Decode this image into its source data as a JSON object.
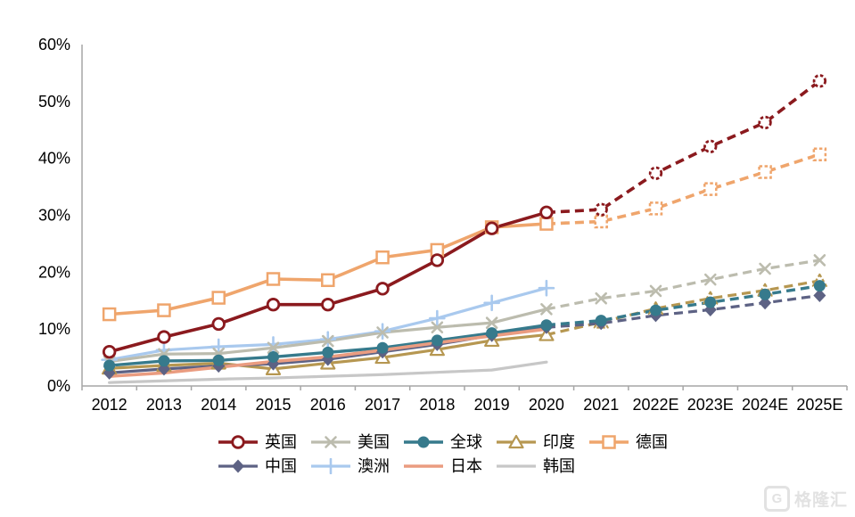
{
  "chart_data": {
    "type": "line",
    "title": "",
    "xlabel": "",
    "ylabel": "",
    "unit": "%",
    "ylim": [
      0,
      60
    ],
    "ytick_step": 10,
    "ytick_labels": [
      "0%",
      "10%",
      "20%",
      "30%",
      "40%",
      "50%",
      "60%"
    ],
    "grid": false,
    "legend_position": "bottom",
    "forecast_dashed_from_index": 8,
    "categories": [
      "2012",
      "2013",
      "2014",
      "2015",
      "2016",
      "2017",
      "2018",
      "2019",
      "2020",
      "2021",
      "2022E",
      "2023E",
      "2024E",
      "2025E"
    ],
    "series": [
      {
        "name": "韩国",
        "color": "#c7c7c7",
        "marker": "none",
        "width": 3.2,
        "values": [
          0.6,
          0.9,
          1.2,
          1.4,
          1.7,
          2.0,
          2.4,
          2.8,
          4.2,
          null,
          null,
          null,
          null,
          null
        ]
      },
      {
        "name": "澳洲",
        "color": "#a9c9ee",
        "marker": "plus",
        "width": 3.2,
        "values": [
          4.6,
          6.3,
          6.9,
          7.3,
          8.2,
          9.6,
          11.9,
          14.6,
          17.2,
          null,
          null,
          null,
          null,
          null
        ]
      },
      {
        "name": "美国",
        "color": "#bcbcae",
        "marker": "x",
        "width": 3.2,
        "values": [
          4.3,
          5.6,
          5.7,
          6.7,
          7.9,
          9.4,
          10.3,
          11.1,
          13.5,
          15.4,
          16.7,
          18.7,
          20.6,
          22.1
        ]
      },
      {
        "name": "印度",
        "color": "#b69751",
        "marker": "triangle-open",
        "width": 3.2,
        "values": [
          3.1,
          3.6,
          4.0,
          3.0,
          4.0,
          5.0,
          6.4,
          8.0,
          9.0,
          11.2,
          13.6,
          15.4,
          16.8,
          18.5
        ]
      },
      {
        "name": "中国",
        "color": "#5d6284",
        "marker": "diamond-filled",
        "width": 3.2,
        "values": [
          2.3,
          3.0,
          3.5,
          3.9,
          4.7,
          6.0,
          7.3,
          8.9,
          10.3,
          11.0,
          12.4,
          13.4,
          14.6,
          15.9
        ]
      },
      {
        "name": "全球",
        "color": "#367a8c",
        "marker": "circle-filled",
        "width": 3.4,
        "values": [
          3.6,
          4.4,
          4.5,
          5.1,
          5.9,
          6.7,
          8.0,
          9.3,
          10.7,
          11.5,
          13.3,
          14.7,
          16.1,
          17.6
        ]
      },
      {
        "name": "日本",
        "color": "#ea9c80",
        "marker": "none",
        "width": 3.6,
        "values": [
          1.7,
          2.3,
          3.3,
          4.3,
          5.1,
          6.3,
          7.6,
          8.8,
          10.0,
          null,
          null,
          null,
          null,
          null
        ]
      },
      {
        "name": "德国",
        "color": "#efa56c",
        "marker": "square-open",
        "width": 3.6,
        "values": [
          12.6,
          13.3,
          15.5,
          18.8,
          18.6,
          22.6,
          23.9,
          27.9,
          28.5,
          28.9,
          31.2,
          34.6,
          37.6,
          40.7
        ]
      },
      {
        "name": "英国",
        "color": "#8b1a1e",
        "marker": "circle-open",
        "width": 3.6,
        "values": [
          6.0,
          8.6,
          10.9,
          14.3,
          14.3,
          17.1,
          22.1,
          27.7,
          30.5,
          31.0,
          37.4,
          42.1,
          46.3,
          53.6
        ]
      }
    ]
  },
  "legend": {
    "rows": [
      [
        "英国",
        "美国",
        "全球",
        "印度",
        "德国"
      ],
      [
        "中国",
        "澳洲",
        "日本",
        "韩国"
      ]
    ]
  },
  "watermark": {
    "icon": "gelonghui-logo",
    "icon_letter": "G",
    "text": "格隆汇"
  }
}
